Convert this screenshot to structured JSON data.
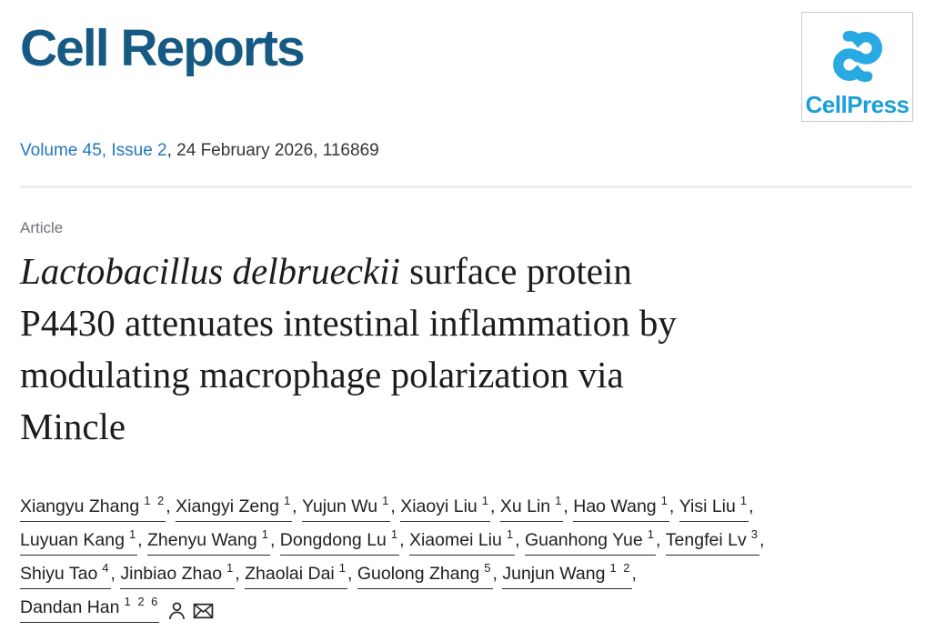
{
  "header": {
    "journal_title": "Cell Reports",
    "publisher": {
      "label": "CellPress"
    }
  },
  "citation": {
    "volume_issue_link": "Volume 45, Issue 2",
    "date_and_id": ", 24 February 2026, 116869"
  },
  "article": {
    "type_label": "Article",
    "title_plain": "Lactobacillus delbrueckii surface protein P4430 attenuates intestinal inflammation by modulating macrophage polarization via Mincle",
    "title_lines": [
      [
        {
          "text": "Lactobacillus delbrueckii",
          "italic": true
        },
        {
          "text": " surface protein",
          "italic": false
        }
      ],
      [
        {
          "text": "P4430 attenuates intestinal inflammation by",
          "italic": false
        }
      ],
      [
        {
          "text": "modulating macrophage polarization via",
          "italic": false
        }
      ],
      [
        {
          "text": "Mincle",
          "italic": false
        }
      ]
    ]
  },
  "authors": {
    "rows": [
      [
        {
          "name": "Xiangyu Zhang",
          "sups": [
            "1",
            "2"
          ]
        },
        {
          "name": "Xiangyi Zeng",
          "sups": [
            "1"
          ]
        },
        {
          "name": "Yujun Wu",
          "sups": [
            "1"
          ]
        },
        {
          "name": "Xiaoyi Liu",
          "sups": [
            "1"
          ]
        },
        {
          "name": "Xu Lin",
          "sups": [
            "1"
          ]
        },
        {
          "name": "Hao Wang",
          "sups": [
            "1"
          ]
        },
        {
          "name": "Yisi Liu",
          "sups": [
            "1"
          ]
        }
      ],
      [
        {
          "name": "Luyuan Kang",
          "sups": [
            "1"
          ]
        },
        {
          "name": "Zhenyu Wang",
          "sups": [
            "1"
          ]
        },
        {
          "name": "Dongdong Lu",
          "sups": [
            "1"
          ]
        },
        {
          "name": "Xiaomei Liu",
          "sups": [
            "1"
          ]
        },
        {
          "name": "Guanhong Yue",
          "sups": [
            "1"
          ]
        },
        {
          "name": "Tengfei Lv",
          "sups": [
            "3"
          ]
        }
      ],
      [
        {
          "name": "Shiyu Tao",
          "sups": [
            "4"
          ]
        },
        {
          "name": "Jinbiao Zhao",
          "sups": [
            "1"
          ]
        },
        {
          "name": "Zhaolai Dai",
          "sups": [
            "1"
          ]
        },
        {
          "name": "Guolong Zhang",
          "sups": [
            "5"
          ]
        },
        {
          "name": "Junjun Wang",
          "sups": [
            "1",
            "2"
          ]
        }
      ],
      [
        {
          "name": "Dandan Han",
          "sups": [
            "1",
            "2",
            "6"
          ],
          "last": true,
          "icons": [
            "person",
            "envelope"
          ]
        }
      ]
    ]
  },
  "colors": {
    "journal_blue": "#165a84",
    "cellpress_cyan": "#29a9e1",
    "cellpress_text": "#199fd9",
    "link_blue": "#2478bd",
    "divider_gray": "#ececec",
    "label_gray": "#6e7277",
    "title_black": "#1c1c1e",
    "author_dark": "#202125"
  }
}
